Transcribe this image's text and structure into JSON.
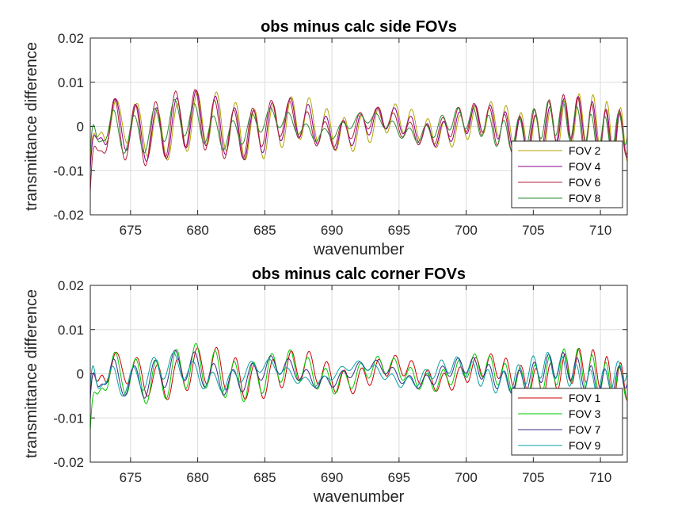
{
  "chart_data": [
    {
      "type": "line",
      "title": "obs minus calc side FOVs",
      "xlabel": "wavenumber",
      "ylabel": "transmittance difference",
      "xlim": [
        672,
        712
      ],
      "ylim": [
        -0.02,
        0.02
      ],
      "xticks": [
        "675",
        "680",
        "685",
        "690",
        "695",
        "700",
        "705",
        "710"
      ],
      "yticks": [
        "-0.02",
        "-0.01",
        "0",
        "0.01",
        "0.02"
      ],
      "grid": true,
      "legend_position": "bottom-right",
      "series": [
        {
          "name": "FOV 2",
          "color": "#b3a300",
          "amp": 0.005,
          "phase": 0.0,
          "start": -0.008
        },
        {
          "name": "FOV 4",
          "color": "#8b008b",
          "amp": 0.0048,
          "phase": 0.3,
          "start": -0.01
        },
        {
          "name": "FOV 6",
          "color": "#b0203a",
          "amp": 0.0055,
          "phase": 0.6,
          "start": -0.015
        },
        {
          "name": "FOV 8",
          "color": "#2e8b2e",
          "amp": 0.004,
          "phase": 0.9,
          "start": -0.006
        }
      ]
    },
    {
      "type": "line",
      "title": "obs minus calc corner FOVs",
      "xlabel": "wavenumber",
      "ylabel": "transmittance difference",
      "xlim": [
        672,
        712
      ],
      "ylim": [
        -0.02,
        0.02
      ],
      "xticks": [
        "675",
        "680",
        "685",
        "690",
        "695",
        "700",
        "705",
        "710"
      ],
      "yticks": [
        "-0.02",
        "-0.01",
        "0",
        "0.01",
        "0.02"
      ],
      "grid": true,
      "legend_position": "bottom-right",
      "series": [
        {
          "name": "FOV 1",
          "color": "#cc0000",
          "amp": 0.0035,
          "phase": 0.0,
          "start": -0.005
        },
        {
          "name": "FOV 3",
          "color": "#00cc00",
          "amp": 0.0038,
          "phase": 0.4,
          "start": -0.013
        },
        {
          "name": "FOV 7",
          "color": "#3a2a8a",
          "amp": 0.003,
          "phase": 0.8,
          "start": -0.006
        },
        {
          "name": "FOV 9",
          "color": "#0aa0a0",
          "amp": 0.0028,
          "phase": 1.2,
          "start": -0.003
        }
      ]
    }
  ]
}
